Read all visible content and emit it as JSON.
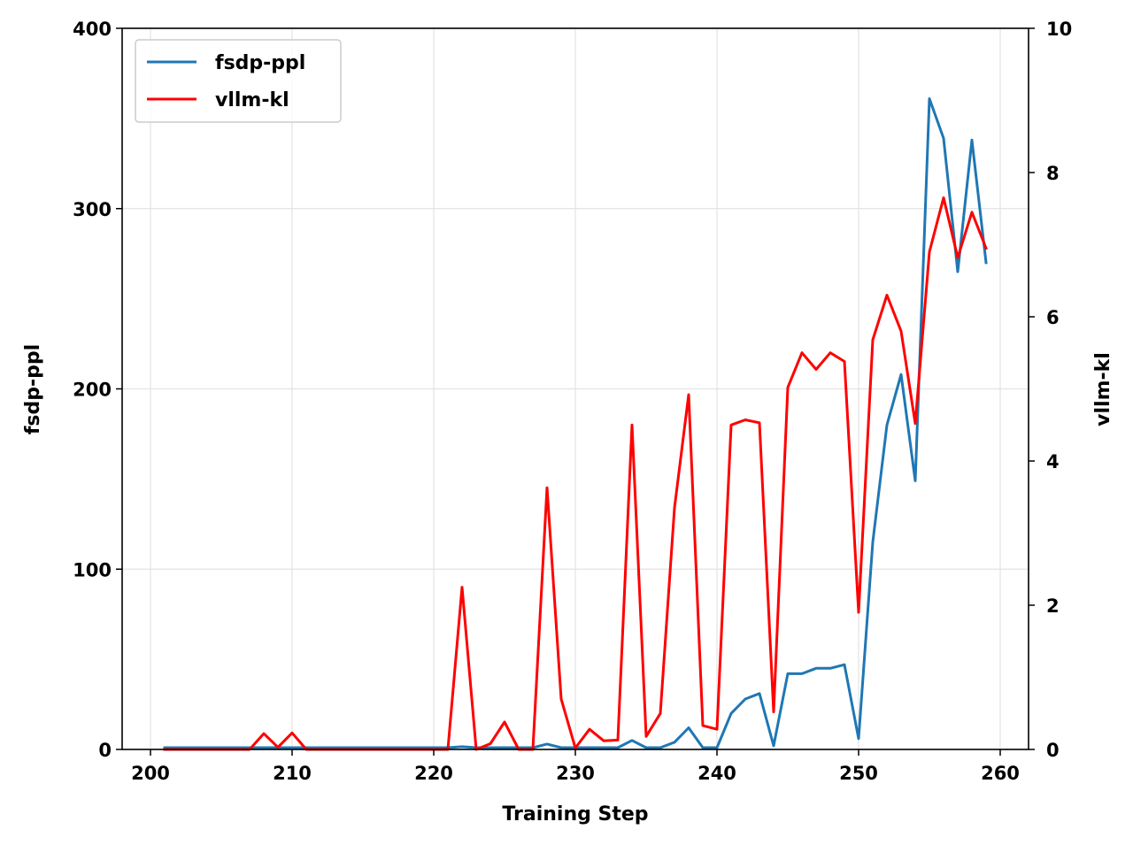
{
  "chart_data": {
    "type": "line",
    "title": "",
    "xlabel": "Training Step",
    "ylabel": "fsdp-ppl",
    "y2label": "vllm-kl",
    "xlim": [
      198,
      262
    ],
    "ylim": [
      0,
      400
    ],
    "y2lim": [
      0,
      10
    ],
    "xticks": [
      200,
      210,
      220,
      230,
      240,
      250,
      260
    ],
    "yticks": [
      0,
      100,
      200,
      300,
      400
    ],
    "y2ticks": [
      0,
      2,
      4,
      6,
      8,
      10
    ],
    "grid": true,
    "legend_position": "top-left",
    "x": [
      201,
      202,
      203,
      204,
      205,
      206,
      207,
      208,
      209,
      210,
      211,
      212,
      213,
      214,
      215,
      216,
      217,
      218,
      219,
      220,
      221,
      222,
      223,
      224,
      225,
      226,
      227,
      228,
      229,
      230,
      231,
      232,
      233,
      234,
      235,
      236,
      237,
      238,
      239,
      240,
      241,
      242,
      243,
      244,
      245,
      246,
      247,
      248,
      249,
      250,
      251,
      252,
      253,
      254,
      255,
      256,
      257,
      258,
      259
    ],
    "series": [
      {
        "name": "fsdp-ppl",
        "axis": "left",
        "color": "#1f77b4",
        "values": [
          1,
          1,
          1,
          1,
          1,
          1,
          1,
          1,
          1,
          1,
          1,
          1,
          1,
          1,
          1,
          1,
          1,
          1,
          1,
          1,
          1,
          1.5,
          1,
          1,
          1,
          1,
          1,
          3,
          1,
          1,
          1,
          1,
          1,
          5,
          1,
          1,
          4,
          12,
          1,
          1,
          20,
          28,
          31,
          2,
          42,
          42,
          45,
          45,
          47,
          6,
          115,
          180,
          208,
          149,
          361,
          339,
          265,
          338,
          270
        ]
      },
      {
        "name": "vllm-kl",
        "axis": "right",
        "color": "#ff0000",
        "values": [
          0,
          0,
          0,
          0,
          0,
          0,
          0,
          0.22,
          0.03,
          0.23,
          0,
          0,
          0,
          0,
          0,
          0,
          0,
          0,
          0,
          0,
          0,
          2.25,
          0,
          0.08,
          0.38,
          0,
          0,
          3.63,
          0.7,
          0.02,
          0.28,
          0.12,
          0.13,
          4.5,
          0.18,
          0.5,
          3.35,
          4.92,
          0.33,
          0.28,
          4.5,
          4.57,
          4.53,
          0.52,
          5.02,
          5.5,
          5.27,
          5.5,
          5.38,
          1.9,
          5.68,
          6.3,
          5.8,
          4.52,
          6.9,
          7.65,
          6.82,
          7.45,
          6.95
        ]
      }
    ]
  }
}
